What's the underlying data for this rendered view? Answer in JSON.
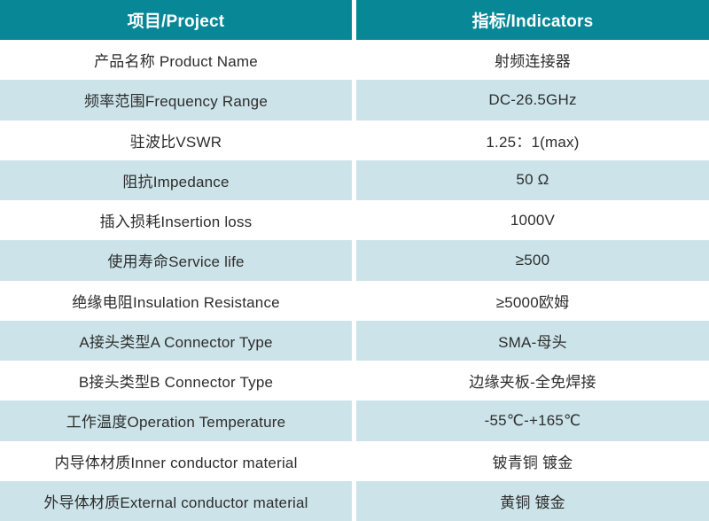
{
  "colors": {
    "accent": "#088797",
    "alt_row": "#cce4e9",
    "header_text": "#ffffff",
    "body_text": "#2d2d2d"
  },
  "table": {
    "header": {
      "project": "项目/Project",
      "indicators": "指标/Indicators"
    },
    "rows": [
      {
        "label": "产品名称 Product Name",
        "value": "射频连接器"
      },
      {
        "label": "频率范围Frequency Range",
        "value": "DC-26.5GHz"
      },
      {
        "label": "驻波比VSWR",
        "value": "1.25：1(max)"
      },
      {
        "label": "阻抗Impedance",
        "value": "50 Ω"
      },
      {
        "label": "插入损耗Insertion loss",
        "value": "1000V"
      },
      {
        "label": "使用寿命Service life",
        "value": "≥500"
      },
      {
        "label": "绝缘电阻Insulation Resistance",
        "value": "≥5000欧姆"
      },
      {
        "label": "A接头类型A Connector Type",
        "value": "SMA-母头"
      },
      {
        "label": "B接头类型B Connector Type",
        "value": "边缘夹板-全免焊接"
      },
      {
        "label": "工作温度Operation Temperature",
        "value": "-55℃-+165℃"
      },
      {
        "label": "内导体材质Inner conductor material",
        "value": "铍青铜 镀金"
      },
      {
        "label": "外导体材质External conductor material",
        "value": "黄铜 镀金"
      }
    ]
  }
}
